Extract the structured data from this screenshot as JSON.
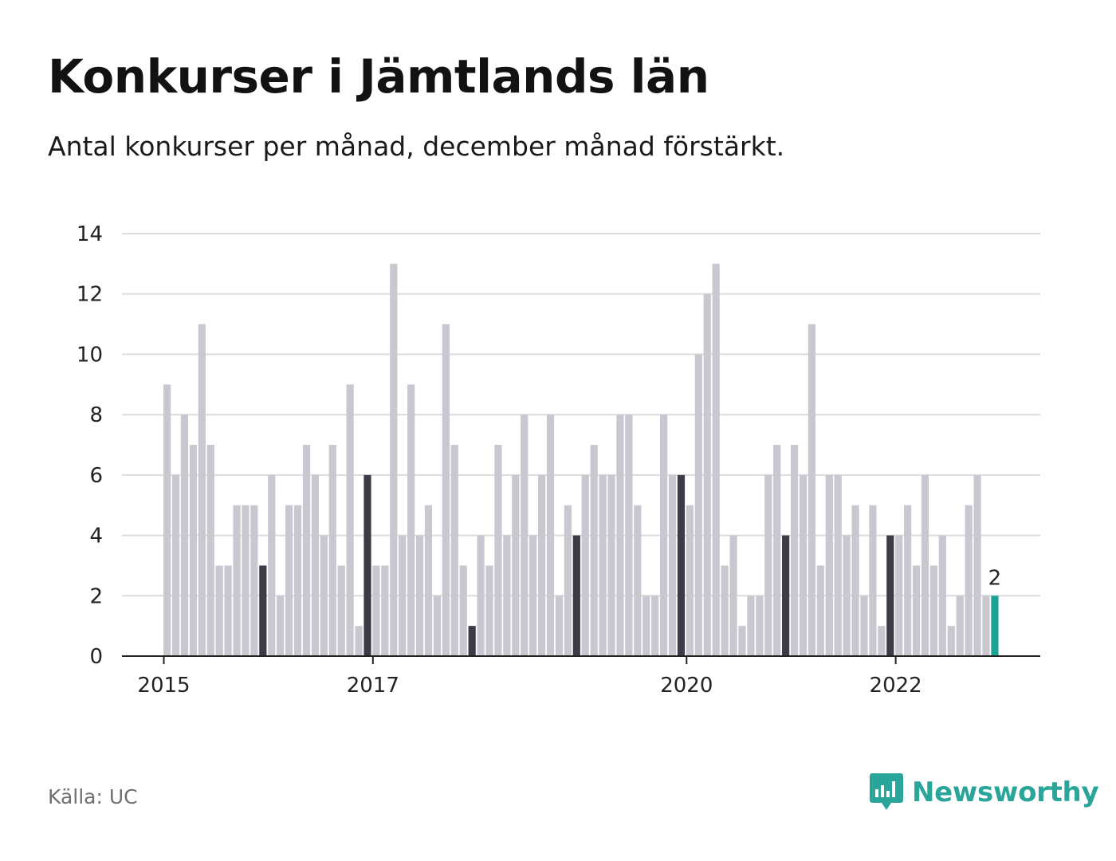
{
  "title": "Konkurser i Jämtlands län",
  "subtitle": "Antal konkurser per månad, december månad förstärkt.",
  "source": "Källa: UC",
  "brand": "Newsworthy",
  "colors": {
    "bar": "#c9c8d1",
    "december": "#3c3b47",
    "latest": "#19a394",
    "grid": "#dcdcdc",
    "axis": "#222222",
    "brand": "#2aa59a"
  },
  "chart_data": {
    "type": "bar",
    "title": "Konkurser i Jämtlands län",
    "subtitle": "Antal konkurser per månad, december månad förstärkt.",
    "xlabel": "",
    "ylabel": "",
    "ylim": [
      0,
      14
    ],
    "yticks": [
      0,
      2,
      4,
      6,
      8,
      10,
      12,
      14
    ],
    "grid": true,
    "start": "2015-01",
    "x_tick_labels": [
      {
        "label": "2015",
        "index": 0
      },
      {
        "label": "2017",
        "index": 24
      },
      {
        "label": "2020",
        "index": 60
      },
      {
        "label": "2022",
        "index": 84
      }
    ],
    "values": [
      9,
      6,
      8,
      7,
      11,
      7,
      3,
      3,
      5,
      5,
      5,
      3,
      6,
      2,
      5,
      5,
      7,
      6,
      4,
      7,
      3,
      9,
      1,
      6,
      3,
      3,
      13,
      4,
      9,
      4,
      5,
      2,
      11,
      7,
      3,
      1,
      4,
      3,
      7,
      4,
      6,
      8,
      4,
      6,
      8,
      2,
      5,
      4,
      6,
      7,
      6,
      6,
      8,
      8,
      5,
      2,
      2,
      8,
      6,
      6,
      5,
      10,
      12,
      13,
      3,
      4,
      1,
      2,
      2,
      6,
      7,
      4,
      7,
      6,
      11,
      3,
      6,
      6,
      4,
      5,
      2,
      5,
      1,
      4,
      4,
      5,
      3,
      6,
      3,
      4,
      1,
      2,
      5,
      6,
      2,
      2
    ],
    "highlight": "december",
    "last_value_label": "2"
  }
}
